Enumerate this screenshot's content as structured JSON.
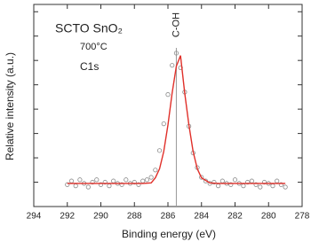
{
  "chart_data": {
    "type": "scatter",
    "xlabel": "Binding energy (eV)",
    "ylabel": "Relative intensity (a.u.)",
    "texts": [
      "SCTO SnO₂",
      "700°C",
      "C1s"
    ],
    "annotations": [
      {
        "text": "C-OH",
        "x": 285.5
      }
    ],
    "xlim": [
      294,
      278
    ],
    "xticks": [
      294,
      292,
      290,
      288,
      286,
      284,
      282,
      280,
      278
    ],
    "ylim": [
      0,
      8.3
    ],
    "yticks": [
      1,
      2,
      3,
      4,
      5,
      6,
      7,
      8
    ],
    "series": [
      {
        "style": "markers",
        "color": "#8a8a8a",
        "x": [
          292,
          291.75,
          291.5,
          291.25,
          291,
          290.75,
          290.5,
          290.25,
          290,
          289.75,
          289.5,
          289.25,
          289,
          288.75,
          288.5,
          288.25,
          288,
          287.75,
          287.5,
          287.25,
          287,
          286.75,
          286.5,
          286.25,
          286,
          285.75,
          285.5,
          285.25,
          285,
          284.75,
          284.5,
          284.25,
          284,
          283.75,
          283.5,
          283.25,
          283,
          282.75,
          282.5,
          282.25,
          282,
          281.75,
          281.5,
          281.25,
          281,
          280.75,
          280.5,
          280.25,
          280,
          279.75,
          279.5,
          279.25,
          279
        ],
        "values": [
          0.9,
          1.05,
          0.85,
          1.1,
          0.95,
          0.8,
          1.0,
          1.1,
          0.9,
          1.0,
          0.85,
          1.05,
          0.95,
          0.9,
          1.1,
          0.95,
          1.0,
          0.9,
          1.05,
          1.1,
          1.2,
          1.5,
          2.3,
          3.4,
          4.6,
          5.8,
          6.3,
          5.7,
          4.7,
          3.3,
          2.2,
          1.6,
          1.2,
          1.05,
          0.95,
          1.0,
          0.85,
          1.05,
          0.95,
          0.9,
          1.1,
          0.95,
          0.85,
          1.0,
          1.05,
          0.9,
          0.8,
          1.0,
          0.95,
          0.85,
          1.05,
          0.9,
          0.8
        ]
      },
      {
        "style": "line",
        "color": "#e0302a",
        "x": [
          292,
          291,
          290,
          289,
          288,
          287.5,
          287,
          286.75,
          286.5,
          286.25,
          286,
          285.75,
          285.5,
          285.25,
          285,
          284.75,
          284.5,
          284.25,
          284,
          283.5,
          283,
          282,
          281,
          280,
          279
        ],
        "values": [
          0.95,
          0.95,
          0.95,
          0.95,
          0.95,
          0.95,
          0.97,
          1.18,
          1.55,
          2.26,
          3.35,
          4.66,
          5.76,
          6.2,
          4.66,
          3.35,
          2.26,
          1.55,
          1.18,
          0.97,
          0.95,
          0.95,
          0.95,
          0.95,
          0.95
        ]
      }
    ]
  }
}
